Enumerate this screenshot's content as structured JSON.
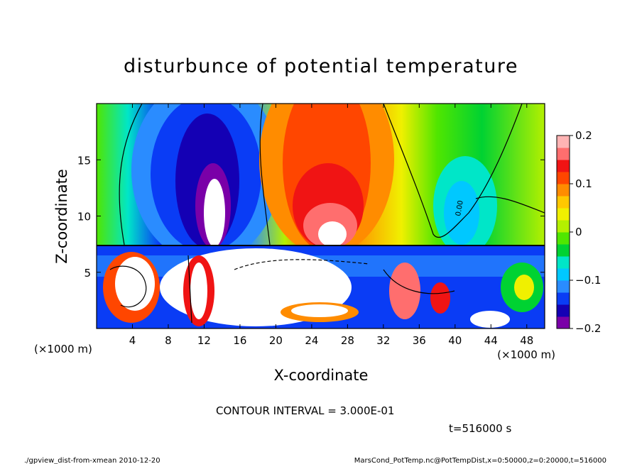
{
  "chart_data": {
    "type": "heatmap",
    "title": "disturbunce of potential temperature",
    "xlabel": "X-coordinate",
    "ylabel": "Z-coordinate",
    "x_unit_label": "(×1000 m)",
    "xlim": [
      0,
      50
    ],
    "ylim": [
      0,
      20
    ],
    "x_ticks": [
      "4",
      "8",
      "12",
      "16",
      "20",
      "24",
      "28",
      "32",
      "36",
      "40",
      "44",
      "48"
    ],
    "y_ticks": [
      "5",
      "10",
      "15"
    ],
    "colorbar": {
      "range": [
        -0.2,
        0.2
      ],
      "tick_labels": [
        "0.2",
        "0.1",
        "0",
        "−0.1",
        "−0.2"
      ],
      "colors": [
        "#7a00a8",
        "#1400b4",
        "#0a3cf5",
        "#2a8cff",
        "#00c8ff",
        "#00e6c8",
        "#00d232",
        "#50e600",
        "#b4f000",
        "#f0f000",
        "#ffc800",
        "#ff8c00",
        "#ff4600",
        "#f01414",
        "#ff6e6e",
        "#ffb4b4"
      ]
    },
    "contour_labels": [
      "0.00"
    ],
    "contour_interval_text": "CONTOUR INTERVAL = 3.000E-01",
    "time_text": "t=516000 s"
  },
  "footer": {
    "left": "./gpview_dist-from-xmean  2010-12-20",
    "right": "MarsCond_PotTemp.nc@PotTempDist,x=0:50000,z=0:20000,t=516000"
  }
}
